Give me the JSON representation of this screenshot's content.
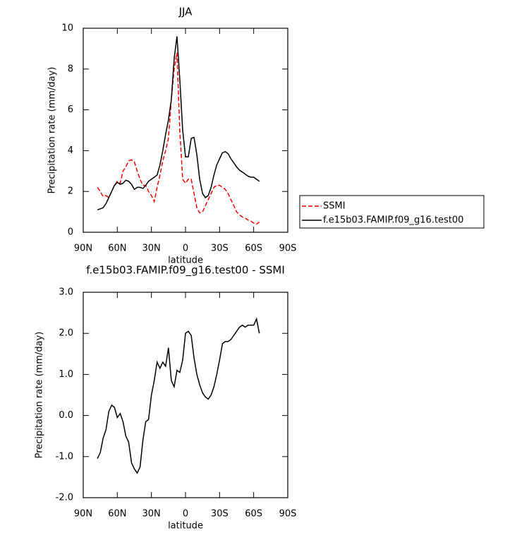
{
  "chart_data": [
    {
      "type": "line",
      "title": "JJA",
      "x_label": "latitude",
      "y_label": "Precipitation rate (mm/day)",
      "x": [
        77.5,
        75,
        72.5,
        70,
        67.5,
        65,
        62.5,
        60,
        57.5,
        55,
        52.5,
        50,
        47.5,
        45,
        42.5,
        40,
        37.5,
        35,
        32.5,
        30,
        27.5,
        25,
        22.5,
        20,
        17.5,
        15,
        12.5,
        10,
        7.5,
        5,
        2.5,
        0,
        -2.5,
        -5,
        -7.5,
        -10,
        -12.5,
        -15,
        -17.5,
        -20,
        -22.5,
        -25,
        -27.5,
        -30,
        -32.5,
        -35,
        -37.5,
        -40,
        -42.5,
        -45,
        -47.5,
        -50,
        -52.5,
        -55,
        -57.5,
        -60,
        -62.5,
        -65
      ],
      "series": [
        {
          "name": "SSMI",
          "color": "#ff0000",
          "line_style": "dashed",
          "values": [
            2.2,
            2.0,
            1.75,
            1.8,
            1.7,
            2.0,
            2.3,
            2.5,
            2.4,
            3.0,
            3.2,
            3.5,
            3.55,
            3.45,
            3.0,
            2.6,
            2.3,
            2.3,
            2.0,
            1.8,
            1.5,
            2.2,
            2.8,
            3.5,
            4.0,
            4.6,
            6.5,
            8.0,
            8.8,
            5.0,
            2.6,
            2.4,
            2.6,
            2.6,
            1.9,
            1.2,
            0.95,
            1.0,
            1.3,
            1.6,
            1.9,
            2.2,
            2.3,
            2.3,
            2.2,
            2.1,
            1.9,
            1.6,
            1.3,
            1.0,
            0.85,
            0.75,
            0.7,
            0.6,
            0.55,
            0.45,
            0.4,
            0.5
          ]
        },
        {
          "name": "f.e15b03.FAMIP.f09_g16.test00",
          "color": "#000000",
          "line_style": "solid",
          "values": [
            1.1,
            1.15,
            1.2,
            1.4,
            1.7,
            2.0,
            2.3,
            2.45,
            2.35,
            2.4,
            2.55,
            2.5,
            2.35,
            2.1,
            2.2,
            2.2,
            2.15,
            2.3,
            2.5,
            2.6,
            2.7,
            2.8,
            3.3,
            4.0,
            4.8,
            5.5,
            6.5,
            8.5,
            9.6,
            7.5,
            5.0,
            3.7,
            3.7,
            4.6,
            4.65,
            3.8,
            2.6,
            1.9,
            1.7,
            1.8,
            2.2,
            2.8,
            3.3,
            3.6,
            3.9,
            3.95,
            3.85,
            3.6,
            3.4,
            3.2,
            3.05,
            2.95,
            2.85,
            2.75,
            2.7,
            2.7,
            2.6,
            2.5
          ]
        }
      ],
      "xlim": [
        90,
        -90
      ],
      "xticks": [
        {
          "value": 90,
          "label": "90N"
        },
        {
          "value": 60,
          "label": "60N"
        },
        {
          "value": 30,
          "label": "30N"
        },
        0,
        {
          "value": -30,
          "label": "30S"
        },
        {
          "value": -60,
          "label": "60S"
        },
        {
          "value": -90,
          "label": "90S"
        }
      ],
      "ylim": [
        0,
        10
      ],
      "yticks": [
        0,
        2,
        4,
        6,
        8,
        10
      ],
      "legend": "right"
    },
    {
      "type": "line",
      "title": "f.e15b03.FAMIP.f09_g16.test00 - SSMI",
      "x_label": "latitude",
      "y_label": "Precipitation rate (mm/day)",
      "x": [
        77.5,
        75,
        72.5,
        70,
        67.5,
        65,
        62.5,
        60,
        57.5,
        55,
        52.5,
        50,
        47.5,
        45,
        42.5,
        40,
        37.5,
        35,
        32.5,
        30,
        27.5,
        25,
        22.5,
        20,
        17.5,
        15,
        12.5,
        10,
        7.5,
        5,
        2.5,
        0,
        -2.5,
        -5,
        -7.5,
        -10,
        -12.5,
        -15,
        -17.5,
        -20,
        -22.5,
        -25,
        -27.5,
        -30,
        -32.5,
        -35,
        -37.5,
        -40,
        -42.5,
        -45,
        -47.5,
        -50,
        -52.5,
        -55,
        -57.5,
        -60,
        -62.5,
        -65
      ],
      "series": [
        {
          "color": "#000000",
          "line_style": "solid",
          "values": [
            -1.05,
            -0.9,
            -0.55,
            -0.35,
            0.1,
            0.25,
            0.2,
            -0.05,
            0.05,
            -0.15,
            -0.5,
            -0.65,
            -1.15,
            -1.3,
            -1.4,
            -1.25,
            -0.6,
            -0.15,
            -0.1,
            0.5,
            0.85,
            1.3,
            1.15,
            1.3,
            1.2,
            1.65,
            0.85,
            0.7,
            1.1,
            1.05,
            1.35,
            2.0,
            2.05,
            1.95,
            1.4,
            1.0,
            0.75,
            0.55,
            0.45,
            0.4,
            0.5,
            0.7,
            1.0,
            1.35,
            1.75,
            1.8,
            1.8,
            1.85,
            1.95,
            2.05,
            2.15,
            2.2,
            2.15,
            2.2,
            2.2,
            2.2,
            2.35,
            2.0
          ]
        }
      ],
      "xlim": [
        90,
        -90
      ],
      "xticks": [
        {
          "value": 90,
          "label": "90N"
        },
        {
          "value": 60,
          "label": "60N"
        },
        {
          "value": 30,
          "label": "30N"
        },
        0,
        {
          "value": -30,
          "label": "30S"
        },
        {
          "value": -60,
          "label": "60S"
        },
        {
          "value": -90,
          "label": "90S"
        }
      ],
      "ylim": [
        -2,
        3
      ],
      "yticks": [
        {
          "value": -2,
          "label": "-2.0"
        },
        {
          "value": -1,
          "label": "-1.0"
        },
        {
          "value": 0,
          "label": "0.0"
        },
        {
          "value": 1,
          "label": "1.0"
        },
        {
          "value": 2,
          "label": "2.0"
        },
        {
          "value": 3,
          "label": "3.0"
        }
      ]
    }
  ]
}
